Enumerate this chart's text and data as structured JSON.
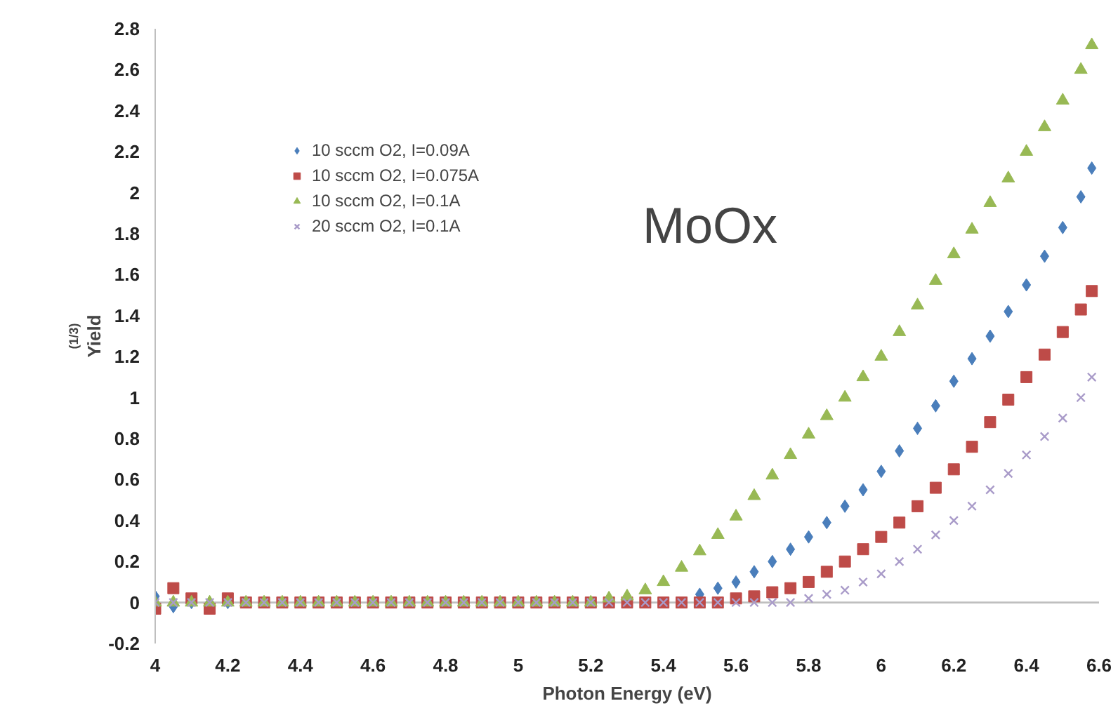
{
  "chart_data": {
    "type": "scatter",
    "xlabel": "Photon Energy (eV)",
    "ylabel": "Yield$^{(1/3)}$",
    "annotations": [
      "MoOx"
    ],
    "x": [
      4.0,
      4.05,
      4.1,
      4.15,
      4.2,
      4.25,
      4.3,
      4.35,
      4.4,
      4.45,
      4.5,
      4.55,
      4.6,
      4.65,
      4.7,
      4.75,
      4.8,
      4.85,
      4.9,
      4.95,
      5.0,
      5.05,
      5.1,
      5.15,
      5.2,
      5.25,
      5.3,
      5.35,
      5.4,
      5.45,
      5.5,
      5.55,
      5.6,
      5.65,
      5.7,
      5.75,
      5.8,
      5.85,
      5.9,
      5.95,
      6.0,
      6.05,
      6.1,
      6.15,
      6.2,
      6.25,
      6.3,
      6.35,
      6.4,
      6.45,
      6.5,
      6.55,
      6.58
    ],
    "series": [
      {
        "name": "10 sccm O2, I=0.09A",
        "color": "#4a7ebb",
        "marker": "diamond",
        "values": [
          0.03,
          -0.02,
          0,
          0,
          0,
          null,
          null,
          null,
          null,
          null,
          null,
          null,
          null,
          null,
          null,
          null,
          null,
          null,
          null,
          null,
          null,
          null,
          null,
          null,
          null,
          null,
          null,
          null,
          null,
          null,
          0.04,
          0.07,
          0.1,
          0.15,
          0.2,
          0.26,
          0.32,
          0.39,
          0.47,
          0.55,
          0.64,
          0.74,
          0.85,
          0.96,
          1.08,
          1.19,
          1.3,
          1.42,
          1.55,
          1.69,
          1.83,
          1.98,
          2.12
        ]
      },
      {
        "name": "10 sccm O2, I=0.075A",
        "color": "#be4b48",
        "marker": "square",
        "values": [
          -0.03,
          0.07,
          0.02,
          -0.03,
          0.02,
          0,
          0,
          0,
          0,
          0,
          0,
          0,
          0,
          0,
          0,
          0,
          0,
          0,
          0,
          0,
          0,
          0,
          0,
          0,
          0,
          0,
          0,
          0,
          0,
          0,
          0,
          0,
          0.02,
          0.03,
          0.05,
          0.07,
          0.1,
          0.15,
          0.2,
          0.26,
          0.32,
          0.39,
          0.47,
          0.56,
          0.65,
          0.76,
          0.88,
          0.99,
          1.1,
          1.21,
          1.32,
          1.43,
          1.52
        ]
      },
      {
        "name": "10 sccm O2, I=0.1A",
        "color": "#98b954",
        "marker": "triangle",
        "values": [
          0,
          0,
          0,
          0,
          0,
          0,
          0,
          0,
          0,
          0,
          0,
          0,
          0,
          0,
          0,
          0,
          0,
          0,
          0,
          0,
          0,
          0,
          0,
          0,
          0,
          0.02,
          0.03,
          0.06,
          0.1,
          0.17,
          0.25,
          0.33,
          0.42,
          0.52,
          0.62,
          0.72,
          0.82,
          0.91,
          1.0,
          1.1,
          1.2,
          1.32,
          1.45,
          1.57,
          1.7,
          1.82,
          1.95,
          2.07,
          2.2,
          2.32,
          2.45,
          2.6,
          2.72
        ]
      },
      {
        "name": "20 sccm O2, I=0.1A",
        "color": "#a99bc9",
        "marker": "cross",
        "values": [
          0,
          0,
          0,
          0,
          0,
          0,
          0,
          0,
          0,
          0,
          0,
          0,
          0,
          0,
          0,
          0,
          0,
          0,
          0,
          0,
          0,
          0,
          0,
          0,
          0,
          0,
          0,
          0,
          0,
          0,
          0,
          0,
          0,
          0,
          0,
          0,
          0.02,
          0.04,
          0.06,
          0.1,
          0.14,
          0.2,
          0.26,
          0.33,
          0.4,
          0.47,
          0.55,
          0.63,
          0.72,
          0.81,
          0.9,
          1.0,
          1.1
        ]
      }
    ],
    "xlim": [
      4,
      6.6
    ],
    "xticks": [
      4,
      4.2,
      4.4,
      4.6,
      4.8,
      5,
      5.2,
      5.4,
      5.6,
      5.8,
      6,
      6.2,
      6.4,
      6.6
    ],
    "ylim": [
      -0.2,
      2.8
    ],
    "yticks": [
      -0.2,
      0,
      0.2,
      0.4,
      0.6,
      0.8,
      1,
      1.2,
      1.4,
      1.6,
      1.8,
      2,
      2.2,
      2.4,
      2.6,
      2.8
    ],
    "ref_lines": [
      {
        "axis": "y",
        "value": 0,
        "color": "#bfbfbf"
      }
    ],
    "grid": false,
    "legend": "top left"
  }
}
